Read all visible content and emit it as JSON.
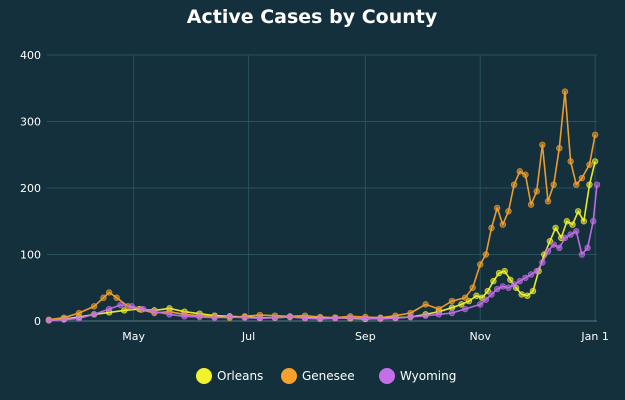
{
  "chart_data": {
    "type": "line",
    "title": "Active Cases by County",
    "xlabel": "",
    "ylabel": "",
    "x_axis": {
      "type": "date",
      "range": [
        "2020-03-16",
        "2021-01-02"
      ],
      "ticks": [
        {
          "date": "2020-05-01",
          "label": "May"
        },
        {
          "date": "2020-07-01",
          "label": "Jul"
        },
        {
          "date": "2020-09-01",
          "label": "Sep"
        },
        {
          "date": "2020-11-01",
          "label": "Nov"
        },
        {
          "date": "2021-01-01",
          "label": "Jan 1"
        }
      ]
    },
    "ylim": [
      0,
      400
    ],
    "yticks": [
      0,
      100,
      200,
      300,
      400
    ],
    "grid": true,
    "legend_position": "bottom",
    "series": [
      {
        "name": "Orleans",
        "color": "#f2f22c",
        "points": [
          [
            "2020-03-17",
            1
          ],
          [
            "2020-03-25",
            3
          ],
          [
            "2020-04-02",
            6
          ],
          [
            "2020-04-10",
            10
          ],
          [
            "2020-04-18",
            13
          ],
          [
            "2020-04-26",
            16
          ],
          [
            "2020-05-04",
            18
          ],
          [
            "2020-05-12",
            16
          ],
          [
            "2020-05-20",
            19
          ],
          [
            "2020-05-28",
            14
          ],
          [
            "2020-06-05",
            11
          ],
          [
            "2020-06-13",
            8
          ],
          [
            "2020-06-21",
            7
          ],
          [
            "2020-06-29",
            6
          ],
          [
            "2020-07-07",
            5
          ],
          [
            "2020-07-15",
            5
          ],
          [
            "2020-07-23",
            6
          ],
          [
            "2020-07-31",
            5
          ],
          [
            "2020-08-08",
            4
          ],
          [
            "2020-08-16",
            5
          ],
          [
            "2020-08-24",
            4
          ],
          [
            "2020-09-01",
            3
          ],
          [
            "2020-09-09",
            4
          ],
          [
            "2020-09-17",
            5
          ],
          [
            "2020-09-25",
            6
          ],
          [
            "2020-10-03",
            10
          ],
          [
            "2020-10-10",
            14
          ],
          [
            "2020-10-17",
            20
          ],
          [
            "2020-10-22",
            25
          ],
          [
            "2020-10-26",
            30
          ],
          [
            "2020-10-30",
            38
          ],
          [
            "2020-11-02",
            35
          ],
          [
            "2020-11-05",
            45
          ],
          [
            "2020-11-08",
            60
          ],
          [
            "2020-11-11",
            72
          ],
          [
            "2020-11-14",
            75
          ],
          [
            "2020-11-17",
            62
          ],
          [
            "2020-11-20",
            50
          ],
          [
            "2020-11-23",
            40
          ],
          [
            "2020-11-26",
            38
          ],
          [
            "2020-11-29",
            45
          ],
          [
            "2020-12-02",
            75
          ],
          [
            "2020-12-05",
            100
          ],
          [
            "2020-12-08",
            120
          ],
          [
            "2020-12-11",
            140
          ],
          [
            "2020-12-14",
            125
          ],
          [
            "2020-12-17",
            150
          ],
          [
            "2020-12-20",
            145
          ],
          [
            "2020-12-23",
            165
          ],
          [
            "2020-12-26",
            150
          ],
          [
            "2020-12-29",
            205
          ],
          [
            "2021-01-01",
            240
          ]
        ]
      },
      {
        "name": "Genesee",
        "color": "#f5a12c",
        "points": [
          [
            "2020-03-17",
            2
          ],
          [
            "2020-03-25",
            5
          ],
          [
            "2020-04-02",
            12
          ],
          [
            "2020-04-10",
            22
          ],
          [
            "2020-04-15",
            35
          ],
          [
            "2020-04-18",
            43
          ],
          [
            "2020-04-22",
            35
          ],
          [
            "2020-04-28",
            22
          ],
          [
            "2020-05-05",
            17
          ],
          [
            "2020-05-12",
            12
          ],
          [
            "2020-05-20",
            14
          ],
          [
            "2020-05-28",
            10
          ],
          [
            "2020-06-05",
            8
          ],
          [
            "2020-06-13",
            6
          ],
          [
            "2020-06-21",
            5
          ],
          [
            "2020-06-29",
            7
          ],
          [
            "2020-07-07",
            9
          ],
          [
            "2020-07-15",
            8
          ],
          [
            "2020-07-23",
            7
          ],
          [
            "2020-07-31",
            8
          ],
          [
            "2020-08-08",
            6
          ],
          [
            "2020-08-16",
            5
          ],
          [
            "2020-08-24",
            7
          ],
          [
            "2020-09-01",
            6
          ],
          [
            "2020-09-09",
            5
          ],
          [
            "2020-09-17",
            8
          ],
          [
            "2020-09-25",
            12
          ],
          [
            "2020-10-03",
            25
          ],
          [
            "2020-10-10",
            18
          ],
          [
            "2020-10-17",
            30
          ],
          [
            "2020-10-24",
            35
          ],
          [
            "2020-10-28",
            50
          ],
          [
            "2020-11-01",
            85
          ],
          [
            "2020-11-04",
            100
          ],
          [
            "2020-11-07",
            140
          ],
          [
            "2020-11-10",
            170
          ],
          [
            "2020-11-13",
            145
          ],
          [
            "2020-11-16",
            165
          ],
          [
            "2020-11-19",
            205
          ],
          [
            "2020-11-22",
            225
          ],
          [
            "2020-11-25",
            220
          ],
          [
            "2020-11-28",
            175
          ],
          [
            "2020-12-01",
            195
          ],
          [
            "2020-12-04",
            265
          ],
          [
            "2020-12-07",
            180
          ],
          [
            "2020-12-10",
            205
          ],
          [
            "2020-12-13",
            260
          ],
          [
            "2020-12-16",
            345
          ],
          [
            "2020-12-19",
            240
          ],
          [
            "2020-12-22",
            205
          ],
          [
            "2020-12-25",
            215
          ],
          [
            "2020-12-29",
            235
          ],
          [
            "2021-01-01",
            280
          ]
        ]
      },
      {
        "name": "Wyoming",
        "color": "#c46fe8",
        "points": [
          [
            "2020-03-17",
            1
          ],
          [
            "2020-03-25",
            2
          ],
          [
            "2020-04-02",
            4
          ],
          [
            "2020-04-10",
            10
          ],
          [
            "2020-04-18",
            18
          ],
          [
            "2020-04-24",
            24
          ],
          [
            "2020-04-30",
            22
          ],
          [
            "2020-05-06",
            18
          ],
          [
            "2020-05-12",
            14
          ],
          [
            "2020-05-20",
            10
          ],
          [
            "2020-05-28",
            7
          ],
          [
            "2020-06-05",
            6
          ],
          [
            "2020-06-13",
            5
          ],
          [
            "2020-06-21",
            6
          ],
          [
            "2020-06-29",
            5
          ],
          [
            "2020-07-07",
            4
          ],
          [
            "2020-07-15",
            5
          ],
          [
            "2020-07-23",
            6
          ],
          [
            "2020-07-31",
            4
          ],
          [
            "2020-08-08",
            3
          ],
          [
            "2020-08-16",
            4
          ],
          [
            "2020-08-24",
            5
          ],
          [
            "2020-09-01",
            4
          ],
          [
            "2020-09-09",
            3
          ],
          [
            "2020-09-17",
            4
          ],
          [
            "2020-09-25",
            6
          ],
          [
            "2020-10-03",
            8
          ],
          [
            "2020-10-10",
            10
          ],
          [
            "2020-10-17",
            12
          ],
          [
            "2020-10-24",
            18
          ],
          [
            "2020-11-01",
            25
          ],
          [
            "2020-11-04",
            32
          ],
          [
            "2020-11-07",
            40
          ],
          [
            "2020-11-10",
            48
          ],
          [
            "2020-11-13",
            52
          ],
          [
            "2020-11-16",
            50
          ],
          [
            "2020-11-19",
            55
          ],
          [
            "2020-11-22",
            60
          ],
          [
            "2020-11-25",
            65
          ],
          [
            "2020-11-28",
            70
          ],
          [
            "2020-12-01",
            75
          ],
          [
            "2020-12-04",
            88
          ],
          [
            "2020-12-07",
            105
          ],
          [
            "2020-12-10",
            115
          ],
          [
            "2020-12-13",
            110
          ],
          [
            "2020-12-16",
            125
          ],
          [
            "2020-12-19",
            130
          ],
          [
            "2020-12-22",
            135
          ],
          [
            "2020-12-25",
            100
          ],
          [
            "2020-12-28",
            110
          ],
          [
            "2020-12-31",
            150
          ],
          [
            "2021-01-02",
            205
          ]
        ]
      }
    ]
  }
}
